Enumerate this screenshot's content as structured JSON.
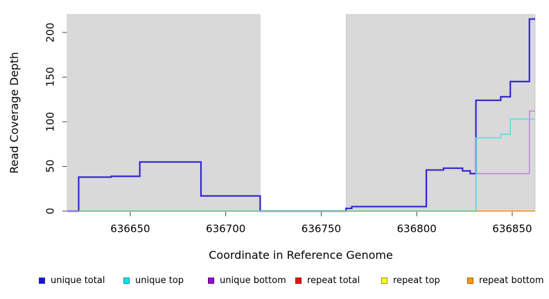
{
  "chart_data": {
    "type": "line",
    "subtype": "step",
    "title": "",
    "xlabel": "Coordinate in Reference Genome",
    "ylabel": "Read Coverage Depth",
    "xlim": [
      636617,
      636862
    ],
    "ylim": [
      0,
      220
    ],
    "x_ticks": [
      636650,
      636700,
      636750,
      636800,
      636850
    ],
    "y_ticks": [
      0,
      50,
      100,
      150,
      200
    ],
    "grid": false,
    "legend_position": "bottom",
    "plot_background": {
      "color": "#d9d9d9",
      "border": "#c6c6c6",
      "gap_region": {
        "start": 636718,
        "end": 636763,
        "color": "#ffffff"
      }
    },
    "series": [
      {
        "name": "unique total",
        "color": "#2a18c6",
        "points": [
          [
            636617,
            0
          ],
          [
            636623,
            38
          ],
          [
            636640,
            39
          ],
          [
            636655,
            55
          ],
          [
            636687,
            17
          ],
          [
            636718,
            0
          ],
          [
            636763,
            3
          ],
          [
            636766,
            5
          ],
          [
            636805,
            46
          ],
          [
            636814,
            48
          ],
          [
            636824,
            45
          ],
          [
            636828,
            42
          ],
          [
            636831,
            124
          ],
          [
            636844,
            128
          ],
          [
            636849,
            145
          ],
          [
            636859,
            215
          ],
          [
            636862,
            215
          ]
        ]
      },
      {
        "name": "unique top",
        "color": "#4cdce8",
        "points": [
          [
            636617,
            0
          ],
          [
            636831,
            0
          ],
          [
            636831,
            82
          ],
          [
            636844,
            86
          ],
          [
            636849,
            103
          ],
          [
            636862,
            103
          ]
        ]
      },
      {
        "name": "unique bottom",
        "color": "#b87fd9",
        "points": [
          [
            636617,
            0
          ],
          [
            636831,
            0
          ],
          [
            636831,
            42
          ],
          [
            636859,
            42
          ],
          [
            636859,
            112
          ],
          [
            636862,
            112
          ]
        ]
      },
      {
        "name": "repeat total",
        "color": "#e01010",
        "points": [
          [
            636617,
            0
          ],
          [
            636862,
            0
          ]
        ]
      },
      {
        "name": "repeat top",
        "color": "#f5f50a",
        "points": [
          [
            636617,
            0
          ],
          [
            636862,
            0
          ]
        ]
      },
      {
        "name": "repeat bottom",
        "color": "#ff9100",
        "points": [
          [
            636617,
            0
          ],
          [
            636862,
            0
          ]
        ]
      }
    ],
    "zero_overlap_segments": [
      {
        "name": "blue-violet-left",
        "color": "#8a70e0",
        "from": 636617,
        "to": 636623
      },
      {
        "name": "green-mid",
        "color": "#7cc87c",
        "from": 636623,
        "to": 636831
      },
      {
        "name": "orange-right",
        "color": "#ff9100",
        "from": 636831,
        "to": 636862
      }
    ],
    "legend": {
      "items": [
        {
          "label": "unique total",
          "fill": "#1414e6",
          "border": "#2b2b8f"
        },
        {
          "label": "unique top",
          "fill": "#00e8e8",
          "border": "#0b8f9b"
        },
        {
          "label": "unique bottom",
          "fill": "#9a06ce",
          "border": "#5c0480"
        },
        {
          "label": "repeat total",
          "fill": "#ee0f0f",
          "border": "#8f1414"
        },
        {
          "label": "repeat top",
          "fill": "#ffff05",
          "border": "#97970a"
        },
        {
          "label": "repeat bottom",
          "fill": "#ff960a",
          "border": "#a85f05"
        }
      ]
    }
  }
}
